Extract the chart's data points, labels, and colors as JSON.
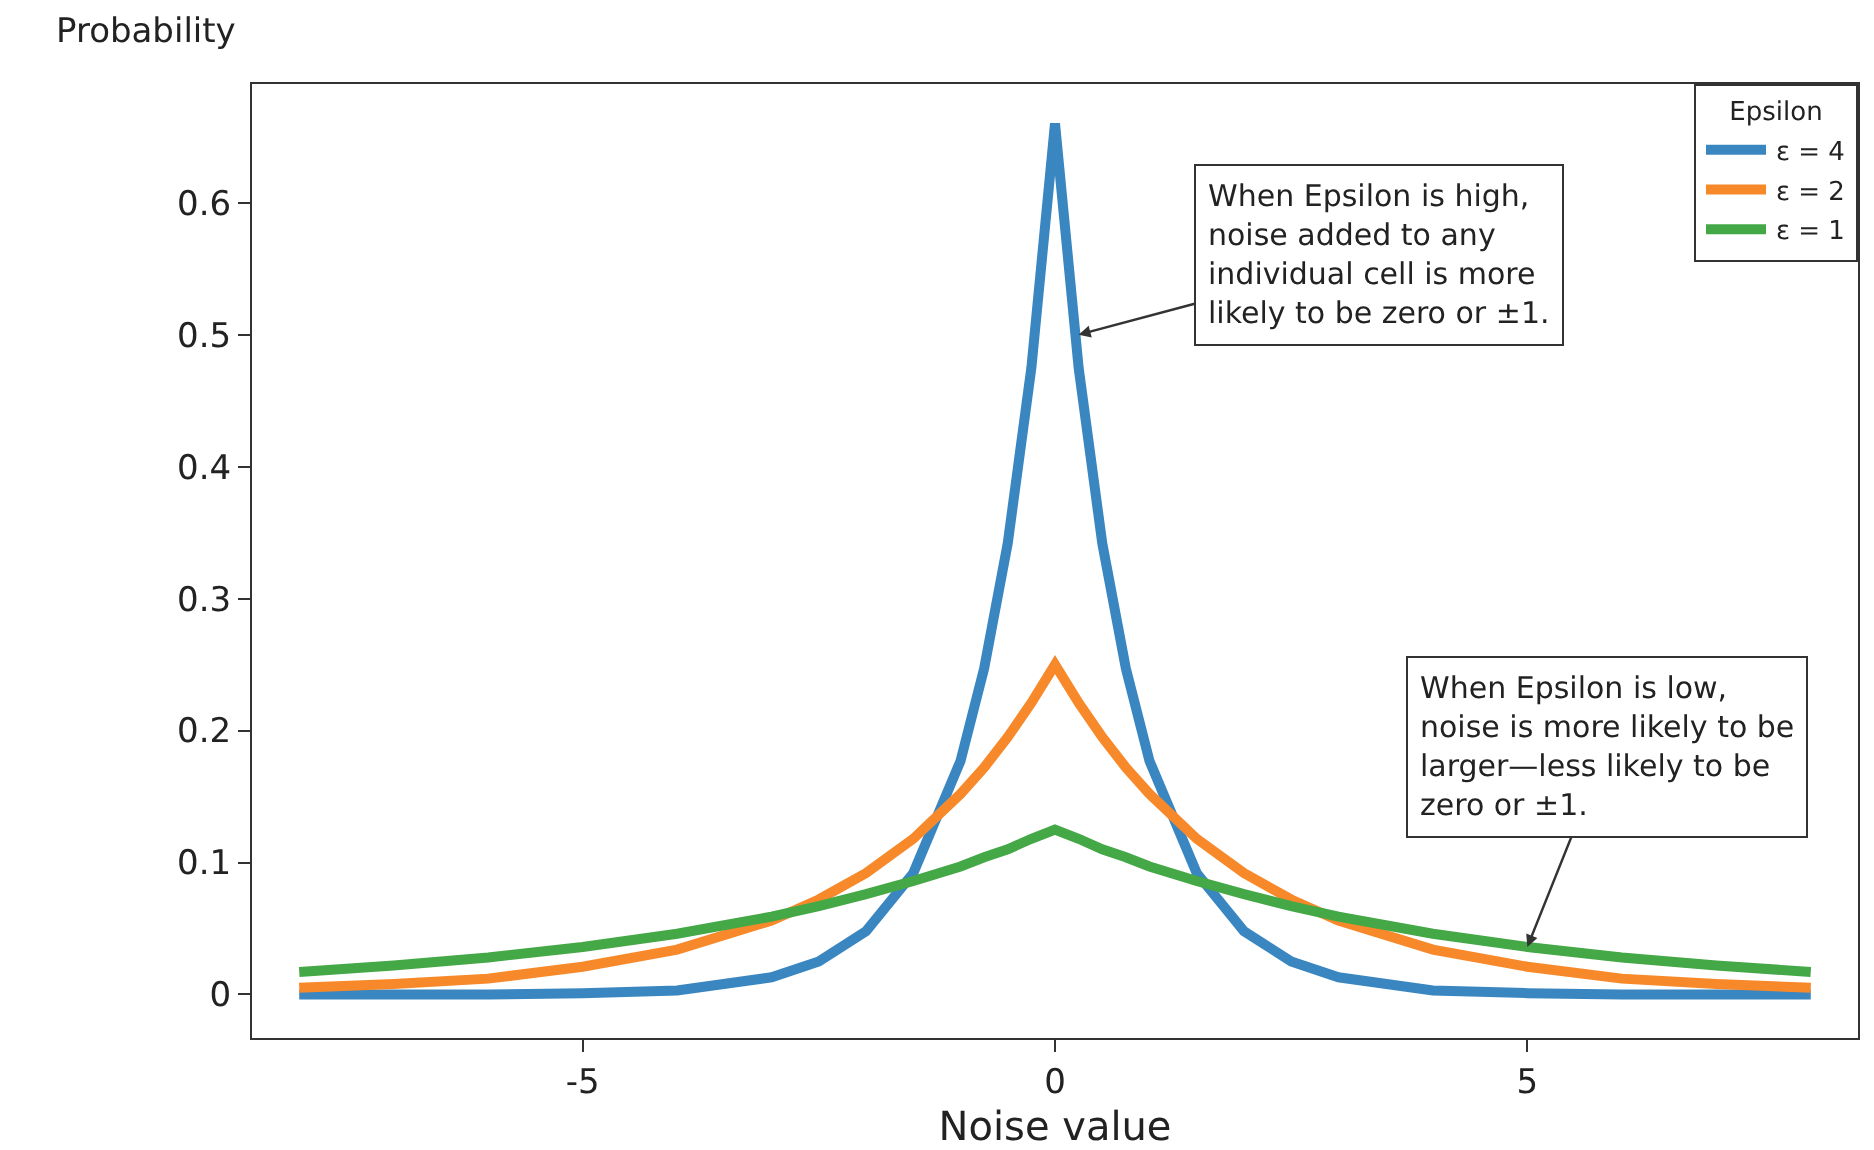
{
  "chart_data": {
    "type": "line",
    "xlabel": "Noise value",
    "ylabel": "Probability",
    "legend_title": "Epsilon",
    "legend": "top right",
    "grid": false,
    "line_style": "solid",
    "marker": "none",
    "x": [
      -8,
      -7,
      -6,
      -5,
      -4,
      -3,
      -2.5,
      -2,
      -1.5,
      -1,
      -0.75,
      -0.5,
      -0.25,
      0,
      0.25,
      0.5,
      0.75,
      1,
      1.5,
      2,
      2.5,
      3,
      4,
      5,
      6,
      7,
      8
    ],
    "xlim": [
      -8.5,
      8.5
    ],
    "xticks": [
      -5,
      0,
      5
    ],
    "ylim": [
      -0.033,
      0.69
    ],
    "yticks": [
      0,
      0.1,
      0.2,
      0.3,
      0.4,
      0.5,
      0.6
    ],
    "series": [
      {
        "name": "ε = 4",
        "color": "#3a86c0",
        "values": [
          0,
          0,
          0,
          0.001,
          0.003,
          0.013,
          0.025,
          0.048,
          0.092,
          0.177,
          0.247,
          0.342,
          0.475,
          0.66,
          0.475,
          0.342,
          0.247,
          0.177,
          0.092,
          0.048,
          0.025,
          0.013,
          0.003,
          0.001,
          0,
          0,
          0
        ]
      },
      {
        "name": "ε = 2",
        "color": "#f7892a",
        "values": [
          0.005,
          0.008,
          0.012,
          0.021,
          0.034,
          0.056,
          0.072,
          0.092,
          0.118,
          0.152,
          0.172,
          0.195,
          0.221,
          0.25,
          0.221,
          0.195,
          0.172,
          0.152,
          0.118,
          0.092,
          0.072,
          0.056,
          0.034,
          0.021,
          0.012,
          0.008,
          0.005
        ]
      },
      {
        "name": "ε = 1",
        "color": "#45a847",
        "values": [
          0.017,
          0.022,
          0.028,
          0.036,
          0.046,
          0.059,
          0.067,
          0.076,
          0.086,
          0.097,
          0.104,
          0.11,
          0.118,
          0.125,
          0.118,
          0.11,
          0.104,
          0.097,
          0.086,
          0.076,
          0.067,
          0.059,
          0.046,
          0.036,
          0.028,
          0.022,
          0.017
        ]
      }
    ],
    "annotations": [
      {
        "text": "When Epsilon is high,\nnoise added to any\nindividual cell is more\nlikely to be zero or ±1.",
        "x": 0.25,
        "y": 0.5
      },
      {
        "text": "When Epsilon is low,\nnoise is more likely to be\nlarger—less likely to be\nzero or ±1.",
        "x": 5,
        "y": 0.036
      }
    ]
  }
}
